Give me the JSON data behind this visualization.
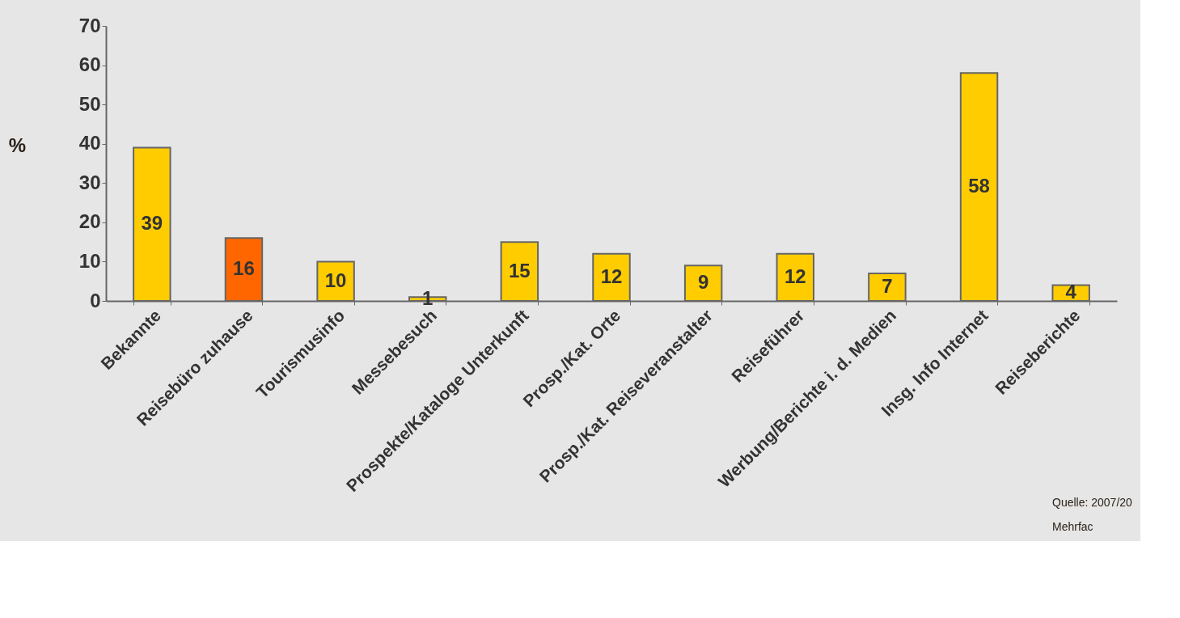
{
  "chart_data": {
    "type": "bar",
    "ylabel": "%",
    "categories": [
      "Bekannte",
      "Reisebüro zuhause",
      "Tourismusinfo",
      "Messebesuch",
      "Prospekte/Kataloge Unterkunft",
      "Prosp./Kat. Orte",
      "Prosp./Kat. Reiseveranstalter",
      "Reiseführer",
      "Werbung/Berichte i. d. Medien",
      "Insg. Info Internet",
      "Reiseberichte"
    ],
    "values": [
      39,
      16,
      10,
      1,
      15,
      12,
      9,
      12,
      7,
      58,
      4
    ],
    "colors": [
      "#ffcc00",
      "#ff6600",
      "#ffcc00",
      "#ffcc00",
      "#ffcc00",
      "#ffcc00",
      "#ffcc00",
      "#ffcc00",
      "#ffcc00",
      "#ffcc00",
      "#ffcc00"
    ],
    "ylim": [
      0,
      70
    ],
    "yticks": [
      0,
      10,
      20,
      30,
      40,
      50,
      60,
      70
    ],
    "grid": false,
    "data_labels": true,
    "annotations": [
      "Quelle: 2007/20",
      "Mehrfac"
    ]
  }
}
